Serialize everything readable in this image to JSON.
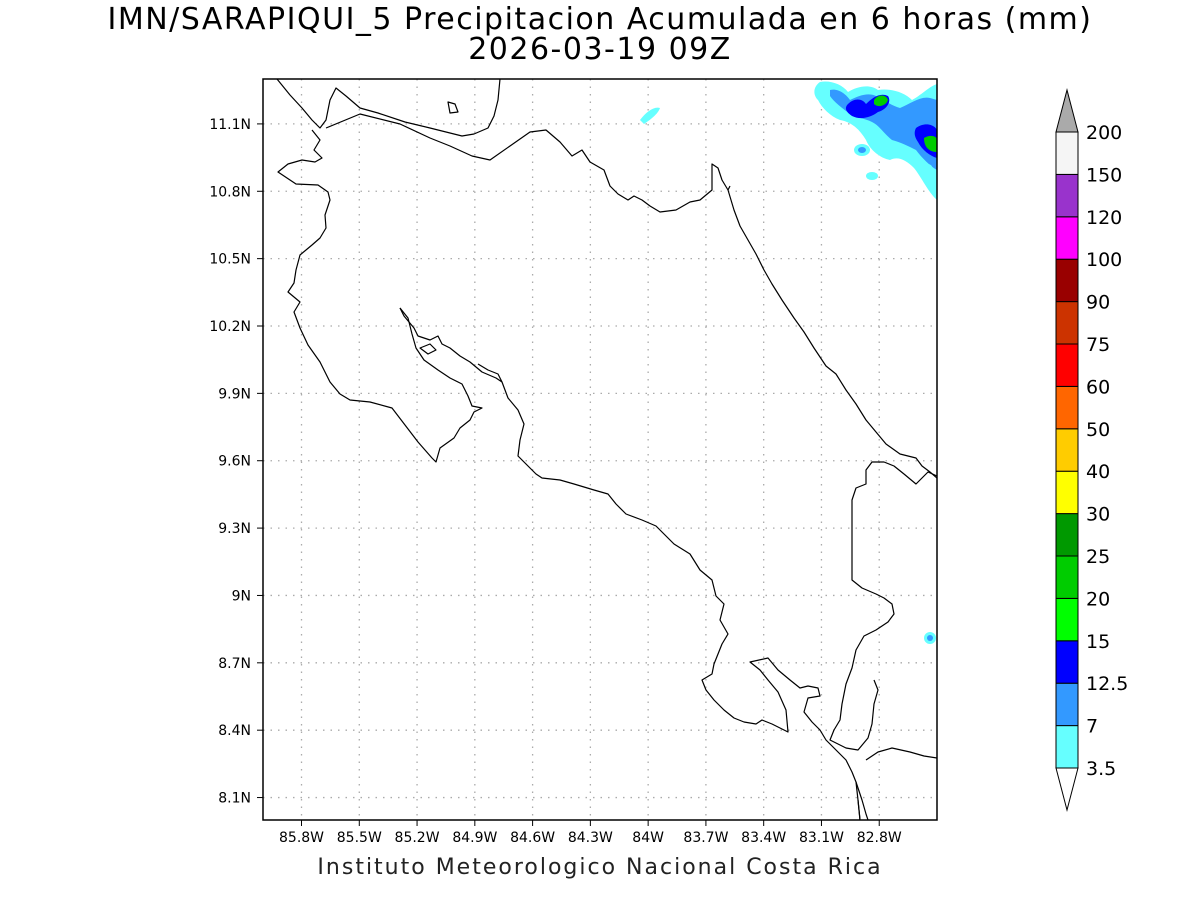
{
  "title": {
    "line1": "IMN/SARAPIQUI_5 Precipitacion Acumulada en 6 horas (mm)",
    "line2": "2026-03-19 09Z"
  },
  "footer": "Instituto Meteorologico Nacional Costa Rica",
  "map": {
    "lon_range": [
      -86.0,
      -82.5
    ],
    "lat_range": [
      8.0,
      11.3
    ],
    "lon_ticks": [
      {
        "value": -85.8,
        "label": "85.8W"
      },
      {
        "value": -85.5,
        "label": "85.5W"
      },
      {
        "value": -85.2,
        "label": "85.2W"
      },
      {
        "value": -84.9,
        "label": "84.9W"
      },
      {
        "value": -84.6,
        "label": "84.6W"
      },
      {
        "value": -84.3,
        "label": "84.3W"
      },
      {
        "value": -84.0,
        "label": "84W"
      },
      {
        "value": -83.7,
        "label": "83.7W"
      },
      {
        "value": -83.4,
        "label": "83.4W"
      },
      {
        "value": -83.1,
        "label": "83.1W"
      },
      {
        "value": -82.8,
        "label": "82.8W"
      }
    ],
    "lat_ticks": [
      {
        "value": 8.1,
        "label": "8.1N"
      },
      {
        "value": 8.4,
        "label": "8.4N"
      },
      {
        "value": 8.7,
        "label": "8.7N"
      },
      {
        "value": 9.0,
        "label": "9N"
      },
      {
        "value": 9.3,
        "label": "9.3N"
      },
      {
        "value": 9.6,
        "label": "9.6N"
      },
      {
        "value": 9.9,
        "label": "9.9N"
      },
      {
        "value": 10.2,
        "label": "10.2N"
      },
      {
        "value": 10.5,
        "label": "10.5N"
      },
      {
        "value": 10.8,
        "label": "10.8N"
      },
      {
        "value": 11.1,
        "label": "11.1N"
      }
    ],
    "grid": true
  },
  "legend": {
    "levels": [
      "3.5",
      "7",
      "12.5",
      "15",
      "20",
      "25",
      "30",
      "40",
      "50",
      "60",
      "75",
      "90",
      "100",
      "120",
      "150",
      "200"
    ],
    "colors": [
      "#ffffff",
      "#66ffff",
      "#3399ff",
      "#0000ff",
      "#00ff00",
      "#00cc00",
      "#009900",
      "#ffff00",
      "#ffcc00",
      "#ff6600",
      "#ff0000",
      "#cc3300",
      "#990000",
      "#ff00ff",
      "#9933cc",
      "#f5f5f5",
      "#aaaaaa"
    ]
  }
}
